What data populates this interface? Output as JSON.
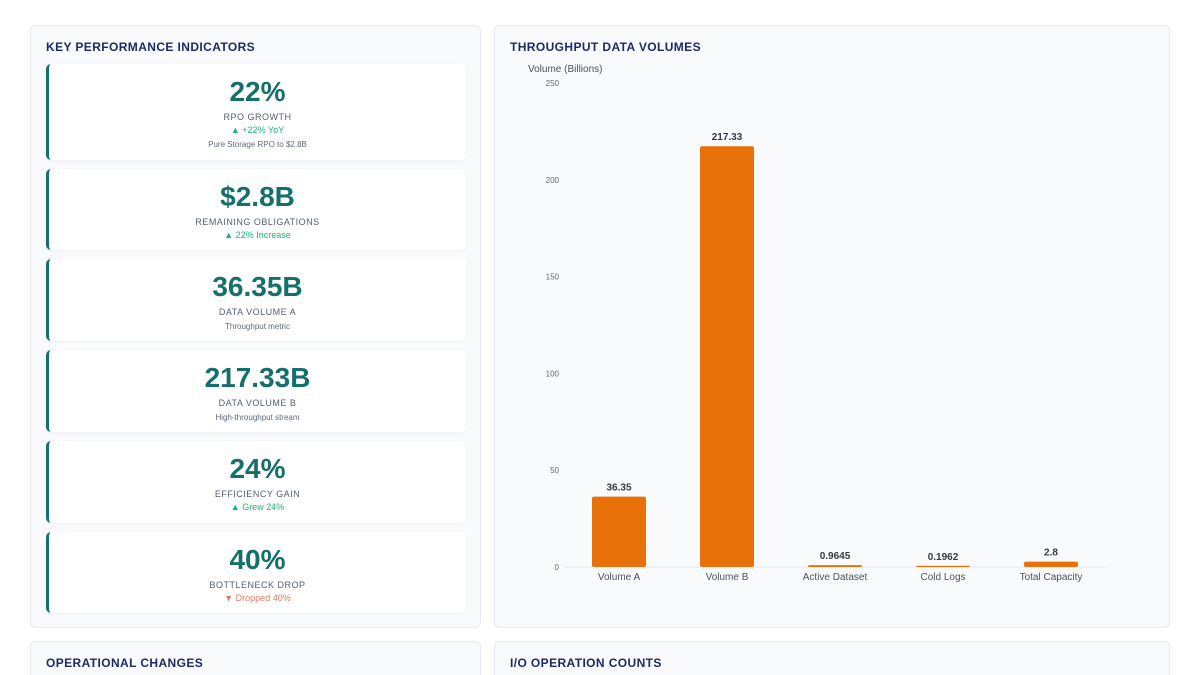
{
  "kpi": {
    "title": "KEY PERFORMANCE INDICATORS",
    "cards": [
      {
        "value": "22%",
        "label": "RPO GROWTH",
        "trend": "▲ +22% YoY",
        "trend_dir": "up",
        "desc": "Pure Storage RPO to $2.8B"
      },
      {
        "value": "$2.8B",
        "label": "REMAINING OBLIGATIONS",
        "trend": "▲ 22% Increase",
        "trend_dir": "up",
        "desc": ""
      },
      {
        "value": "36.35B",
        "label": "DATA VOLUME A",
        "trend": "",
        "trend_dir": "",
        "desc": "Throughput metric"
      },
      {
        "value": "217.33B",
        "label": "DATA VOLUME B",
        "trend": "",
        "trend_dir": "",
        "desc": "High-throughput stream"
      },
      {
        "value": "24%",
        "label": "EFFICIENCY GAIN",
        "trend": "▲ Grew 24%",
        "trend_dir": "up",
        "desc": ""
      },
      {
        "value": "40%",
        "label": "BOTTLENECK DROP",
        "trend": "▼ Dropped 40%",
        "trend_dir": "down",
        "desc": ""
      }
    ]
  },
  "chart_panel": {
    "title": "THROUGHPUT DATA VOLUMES"
  },
  "ops": {
    "title": "OPERATIONAL CHANGES"
  },
  "io": {
    "title": "I/O OPERATION COUNTS"
  },
  "chart_data": {
    "type": "bar",
    "title": "",
    "ylabel": "Volume (Billions)",
    "xlabel": "",
    "categories": [
      "Volume A",
      "Volume B",
      "Active Dataset",
      "Cold Logs",
      "Total Capacity"
    ],
    "values": [
      36.35,
      217.33,
      0.9645,
      0.1962,
      2.8
    ],
    "data_labels": [
      "36.35",
      "217.33",
      "0.9645",
      "0.1962",
      "2.8"
    ],
    "ylim": [
      0,
      250
    ],
    "yticks": [
      0,
      50,
      100,
      150,
      200,
      250
    ],
    "grid": false,
    "bar_color": "#e8710a"
  }
}
